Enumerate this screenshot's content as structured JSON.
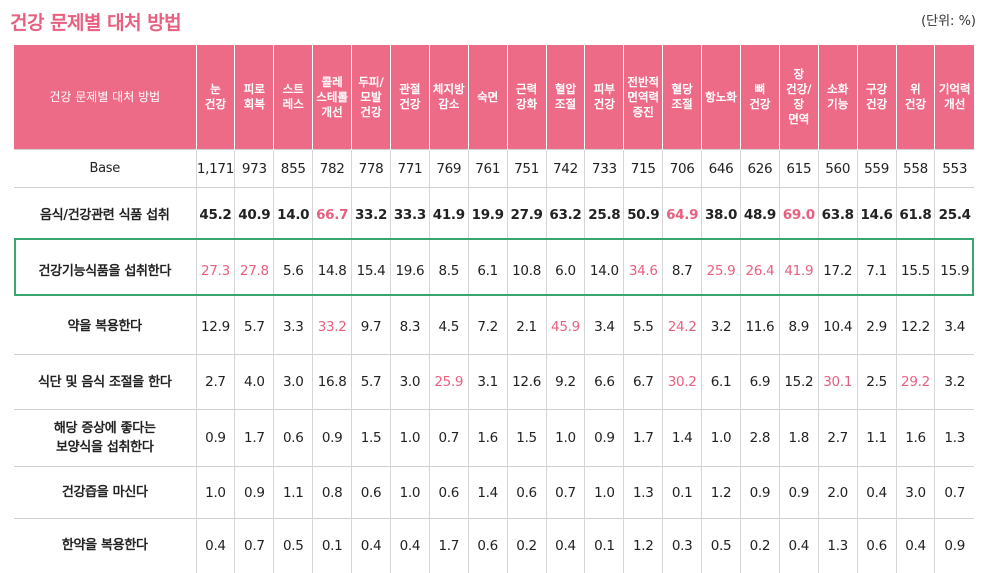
{
  "title": "건강 문제별 대처 방법",
  "unit": "(단위: %)",
  "header": {
    "corner": "건강 문제별 대처 방법",
    "columns": [
      "눈\n건강",
      "피로\n회복",
      "스트\n레스",
      "콜레\n스테롤\n개선",
      "두피/\n모발\n건강",
      "관절\n건강",
      "체지방\n감소",
      "숙면",
      "근력\n강화",
      "혈압\n조절",
      "피부\n건강",
      "전반적\n면역력\n증진",
      "혈당\n조절",
      "항노화",
      "뼈\n건강",
      "장\n건강/\n장\n면역",
      "소화\n기능",
      "구강\n건강",
      "위\n건강",
      "기억력\n개선"
    ]
  },
  "rows": [
    {
      "label": "Base",
      "values": [
        "1,171",
        "973",
        "855",
        "782",
        "778",
        "771",
        "769",
        "761",
        "751",
        "742",
        "733",
        "715",
        "706",
        "646",
        "626",
        "615",
        "560",
        "559",
        "558",
        "553"
      ],
      "pink": []
    },
    {
      "label": "음식/건강관련 식품 섭취",
      "values": [
        "45.2",
        "40.9",
        "14.0",
        "66.7",
        "33.2",
        "33.3",
        "41.9",
        "19.9",
        "27.9",
        "63.2",
        "25.8",
        "50.9",
        "64.9",
        "38.0",
        "48.9",
        "69.0",
        "63.8",
        "14.6",
        "61.8",
        "25.4"
      ],
      "pink": [
        3,
        12,
        15
      ]
    },
    {
      "label": "건강기능식품을 섭취한다",
      "values": [
        "27.3",
        "27.8",
        "5.6",
        "14.8",
        "15.4",
        "19.6",
        "8.5",
        "6.1",
        "10.8",
        "6.0",
        "14.0",
        "34.6",
        "8.7",
        "25.9",
        "26.4",
        "41.9",
        "17.2",
        "7.1",
        "15.5",
        "15.9"
      ],
      "pink": [
        0,
        1,
        11,
        13,
        14,
        15
      ]
    },
    {
      "label": "약을 복용한다",
      "values": [
        "12.9",
        "5.7",
        "3.3",
        "33.2",
        "9.7",
        "8.3",
        "4.5",
        "7.2",
        "2.1",
        "45.9",
        "3.4",
        "5.5",
        "24.2",
        "3.2",
        "11.6",
        "8.9",
        "10.4",
        "2.9",
        "12.2",
        "3.4"
      ],
      "pink": [
        3,
        9,
        12
      ]
    },
    {
      "label": "식단 및 음식 조절을 한다",
      "values": [
        "2.7",
        "4.0",
        "3.0",
        "16.8",
        "5.7",
        "3.0",
        "25.9",
        "3.1",
        "12.6",
        "9.2",
        "6.6",
        "6.7",
        "30.2",
        "6.1",
        "6.9",
        "15.2",
        "30.1",
        "2.5",
        "29.2",
        "3.2"
      ],
      "pink": [
        6,
        12,
        16,
        18
      ]
    },
    {
      "label": "해당 증상에 좋다는\n보양식을 섭취한다",
      "values": [
        "0.9",
        "1.7",
        "0.6",
        "0.9",
        "1.5",
        "1.0",
        "0.7",
        "1.6",
        "1.5",
        "1.0",
        "0.9",
        "1.7",
        "1.4",
        "1.0",
        "2.8",
        "1.8",
        "2.7",
        "1.1",
        "1.6",
        "1.3"
      ],
      "pink": []
    },
    {
      "label": "건강즙을 마신다",
      "values": [
        "1.0",
        "0.9",
        "1.1",
        "0.8",
        "0.6",
        "1.0",
        "0.6",
        "1.4",
        "0.6",
        "0.7",
        "1.0",
        "1.3",
        "0.1",
        "1.2",
        "0.9",
        "0.9",
        "2.0",
        "0.4",
        "3.0",
        "0.7"
      ],
      "pink": []
    },
    {
      "label": "한약을 복용한다",
      "values": [
        "0.4",
        "0.7",
        "0.5",
        "0.1",
        "0.4",
        "0.4",
        "1.7",
        "0.6",
        "0.2",
        "0.4",
        "0.1",
        "1.2",
        "0.3",
        "0.5",
        "0.2",
        "0.4",
        "1.3",
        "0.6",
        "0.4",
        "0.9"
      ],
      "pink": []
    }
  ],
  "colors": {
    "accent": "#e8607f",
    "header_bg": "#ee6b88",
    "highlight_border": "#3aa66f"
  }
}
